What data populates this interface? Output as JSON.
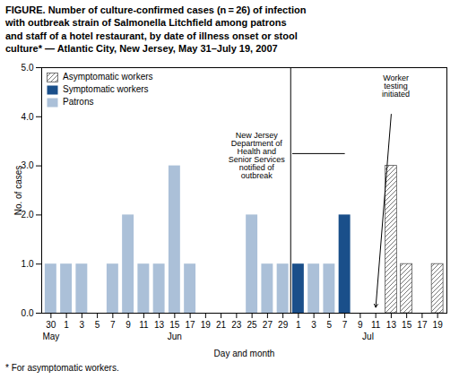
{
  "chart_data": {
    "type": "bar",
    "title": "FIGURE. Number of culture-confirmed cases (n = 26) of infection\nwith outbreak strain of Salmonella Litchfield among patrons\nand staff of a hotel restaurant, by date of illness onset or stool\nculture* — Atlantic City, New Jersey, May 31–July 19, 2007",
    "x_label": "Day and month",
    "y_label": "No. of cases",
    "caption": "* For asymptomatic workers.",
    "categories": [
      "30",
      "1",
      "3",
      "5",
      "7",
      "9",
      "11",
      "13",
      "15",
      "17",
      "19",
      "21",
      "23",
      "25",
      "27",
      "29",
      "1",
      "3",
      "5",
      "7",
      "9",
      "11",
      "13",
      "15",
      "17",
      "19"
    ],
    "series": [
      {
        "name": "Asymptomatic workers",
        "color": "#ffffff",
        "values": [
          0,
          0,
          0,
          0,
          0,
          0,
          0,
          0,
          0,
          0,
          0,
          0,
          0,
          0,
          0,
          0,
          0,
          0,
          0,
          0,
          0,
          0,
          3,
          1,
          0,
          1
        ]
      },
      {
        "name": "Symptomatic workers",
        "color": "#1a4f8a",
        "values": [
          0,
          0,
          0,
          0,
          0,
          0,
          0,
          0,
          0,
          0,
          0,
          0,
          0,
          0,
          0,
          0,
          1,
          0,
          0,
          2,
          0,
          0,
          0,
          0,
          0,
          0
        ]
      },
      {
        "name": "Patrons",
        "color": "#abc0d8",
        "values": [
          1,
          1,
          1,
          0,
          1,
          2,
          1,
          1,
          3,
          1,
          0,
          0,
          0,
          2,
          1,
          1,
          0,
          1,
          1,
          0,
          0,
          0,
          0,
          0,
          0,
          0
        ]
      }
    ],
    "ylim": [
      0,
      5
    ],
    "yticks": [
      0,
      1,
      2,
      3,
      4,
      5
    ],
    "legend": "upper left",
    "annotations": [
      "May",
      "Jun",
      "Jul",
      "New Jersey\nDepartment of\nHealth and\nSenior Services\nnotified of\noutbreak",
      "Worker\ntesting\ninitiated"
    ]
  }
}
